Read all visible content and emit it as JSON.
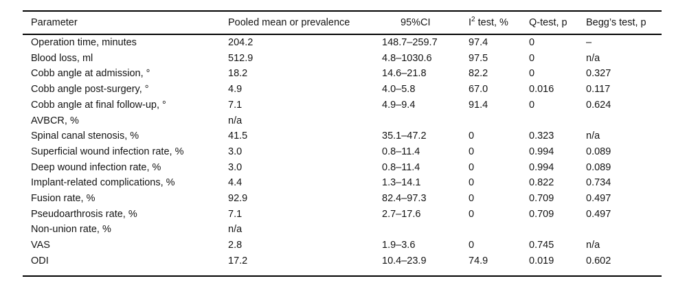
{
  "table": {
    "title": "meta-analysis-pooled-results",
    "columns": [
      {
        "key": "parameter",
        "label": "Parameter"
      },
      {
        "key": "pooled-mean",
        "label": "Pooled mean or prevalence"
      },
      {
        "key": "ci95",
        "label": "95%CI"
      },
      {
        "key": "i2-test",
        "label_base": "I",
        "label_sup": "2",
        "label_rest": " test, %"
      },
      {
        "key": "q-test",
        "label": "Q-test, p"
      },
      {
        "key": "beggs-test",
        "label": "Begg’s test, p"
      }
    ],
    "rows": [
      [
        "Operation time, minutes",
        "204.2",
        "148.7–259.7",
        "97.4",
        "0",
        "–"
      ],
      [
        "Blood loss, ml",
        "512.9",
        "4.8–1030.6",
        "97.5",
        "0",
        "n/a"
      ],
      [
        "Cobb angle at admission, °",
        "18.2",
        "14.6–21.8",
        "82.2",
        "0",
        "0.327"
      ],
      [
        "Cobb angle post-surgery, °",
        "4.9",
        "4.0–5.8",
        "67.0",
        "0.016",
        "0.117"
      ],
      [
        "Cobb angle at final follow-up, °",
        "7.1",
        "4.9–9.4",
        "91.4",
        "0",
        "0.624"
      ],
      [
        "AVBCR, %",
        "n/a",
        "",
        "",
        "",
        ""
      ],
      [
        "Spinal canal stenosis, %",
        "41.5",
        "35.1–47.2",
        "0",
        "0.323",
        "n/a"
      ],
      [
        "Superficial wound infection rate, %",
        "3.0",
        "0.8–11.4",
        "0",
        "0.994",
        "0.089"
      ],
      [
        "Deep wound infection rate, %",
        "3.0",
        "0.8–11.4",
        "0",
        "0.994",
        "0.089"
      ],
      [
        "Implant-related complications, %",
        "4.4",
        "1.3–14.1",
        "0",
        "0.822",
        "0.734"
      ],
      [
        "Fusion rate, %",
        "92.9",
        "82.4–97.3",
        "0",
        "0.709",
        "0.497"
      ],
      [
        "Pseudoarthrosis rate, %",
        "7.1",
        "2.7–17.6",
        "0",
        "0.709",
        "0.497"
      ],
      [
        "Non-union rate, %",
        "n/a",
        "",
        "",
        "",
        ""
      ],
      [
        "VAS",
        "2.8",
        "1.9–3.6",
        "0",
        "0.745",
        "n/a"
      ],
      [
        "ODI",
        "17.2",
        "10.4–23.9",
        "74.9",
        "0.019",
        "0.602"
      ]
    ]
  }
}
